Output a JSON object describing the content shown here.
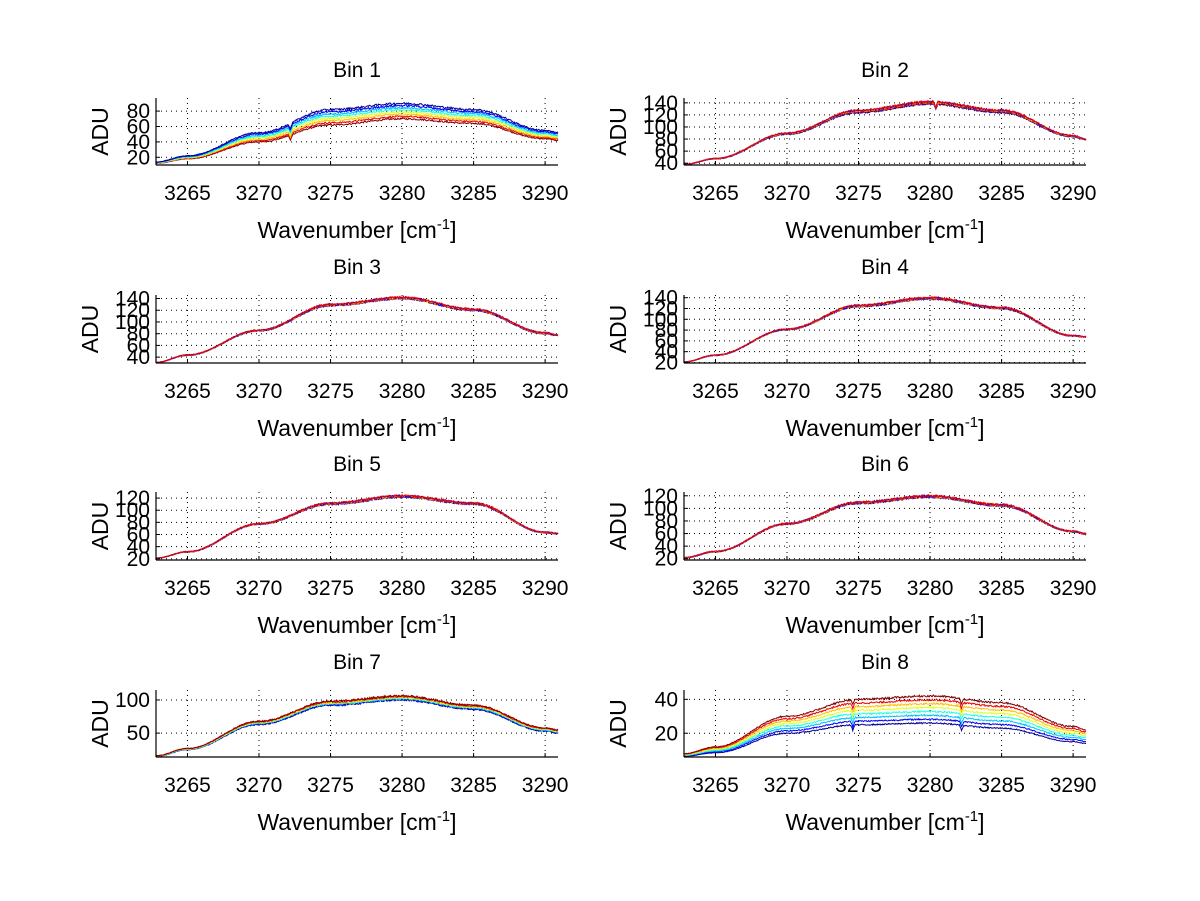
{
  "figure": {
    "layout": "4 rows x 2 columns of subplots"
  },
  "colormap": [
    "#00008f",
    "#0000ff",
    "#0060ff",
    "#00bfff",
    "#20ffdf",
    "#80ff80",
    "#dfff20",
    "#ffbf00",
    "#ff6000",
    "#ef0000",
    "#800000"
  ],
  "chart_data": [
    {
      "type": "line",
      "title": "Bin 1",
      "xlabel": "Wavenumber [cm",
      "xlabel_sup": "-1",
      "xlabel_end": "]",
      "ylabel": "ADU",
      "xlim": [
        3262.8,
        3290.9
      ],
      "ylim": [
        10,
        97
      ],
      "xticks": [
        3265,
        3270,
        3275,
        3280,
        3285,
        3290
      ],
      "yticks": [
        20,
        40,
        60,
        80
      ],
      "grid": true,
      "legend": "none",
      "n_series": 8,
      "series_order": "top curve dark blue, bottom curve red",
      "profile": {
        "x": [
          3262.8,
          3265,
          3270,
          3275,
          3280,
          3285,
          3290,
          3290.9
        ],
        "top": [
          14,
          22,
          52,
          82,
          90,
          82,
          55,
          52
        ],
        "bottom": [
          12,
          18,
          40,
          62,
          70,
          64,
          44,
          42
        ]
      },
      "features": [
        {
          "x": 3272.2,
          "type": "absorption dip"
        }
      ]
    },
    {
      "type": "line",
      "title": "Bin 2",
      "xlabel": "Wavenumber [cm",
      "xlabel_sup": "-1",
      "xlabel_end": "]",
      "ylabel": "ADU",
      "xlim": [
        3262.8,
        3290.9
      ],
      "ylim": [
        37,
        148
      ],
      "xticks": [
        3265,
        3270,
        3275,
        3280,
        3285,
        3290
      ],
      "yticks": [
        40,
        60,
        80,
        100,
        120,
        140
      ],
      "grid": true,
      "legend": "none",
      "n_series": 8,
      "series_order": "curves nearly overlapping",
      "profile": {
        "x": [
          3262.8,
          3265,
          3270,
          3275,
          3280,
          3285,
          3290,
          3290.9
        ],
        "top": [
          38,
          48,
          90,
          128,
          142,
          128,
          86,
          80
        ],
        "bottom": [
          38,
          47,
          88,
          124,
          138,
          124,
          84,
          79
        ]
      },
      "features": [
        {
          "x": 3280.4,
          "type": "absorption dip"
        }
      ]
    },
    {
      "type": "line",
      "title": "Bin 3",
      "xlabel": "Wavenumber [cm",
      "xlabel_sup": "-1",
      "xlabel_end": "]",
      "ylabel": "ADU",
      "xlim": [
        3262.8,
        3290.9
      ],
      "ylim": [
        30,
        146
      ],
      "xticks": [
        3265,
        3270,
        3275,
        3280,
        3285,
        3290
      ],
      "yticks": [
        40,
        60,
        80,
        100,
        120,
        140
      ],
      "grid": true,
      "legend": "none",
      "n_series": 8,
      "series_order": "curves nearly overlapping",
      "profile": {
        "x": [
          3262.8,
          3265,
          3270,
          3275,
          3280,
          3285,
          3290,
          3290.9
        ],
        "top": [
          31,
          44,
          86,
          130,
          142,
          122,
          82,
          78
        ],
        "bottom": [
          31,
          43,
          85,
          128,
          140,
          120,
          80,
          77
        ]
      },
      "features": []
    },
    {
      "type": "line",
      "title": "Bin 4",
      "xlabel": "Wavenumber [cm",
      "xlabel_sup": "-1",
      "xlabel_end": "]",
      "ylabel": "ADU",
      "xlim": [
        3262.8,
        3290.9
      ],
      "ylim": [
        19,
        145
      ],
      "xticks": [
        3265,
        3270,
        3275,
        3280,
        3285,
        3290
      ],
      "yticks": [
        20,
        40,
        60,
        80,
        100,
        120,
        140
      ],
      "grid": true,
      "legend": "none",
      "n_series": 8,
      "series_order": "curves nearly overlapping",
      "profile": {
        "x": [
          3262.8,
          3265,
          3270,
          3275,
          3280,
          3285,
          3290,
          3290.9
        ],
        "top": [
          21,
          34,
          82,
          126,
          140,
          122,
          70,
          68
        ],
        "bottom": [
          21,
          33,
          81,
          124,
          138,
          120,
          69,
          67
        ]
      },
      "features": []
    },
    {
      "type": "line",
      "title": "Bin 5",
      "xlabel": "Wavenumber [cm",
      "xlabel_sup": "-1",
      "xlabel_end": "]",
      "ylabel": "ADU",
      "xlim": [
        3262.8,
        3290.9
      ],
      "ylim": [
        18,
        130
      ],
      "xticks": [
        3265,
        3270,
        3275,
        3280,
        3285,
        3290
      ],
      "yticks": [
        20,
        40,
        60,
        80,
        100,
        120
      ],
      "grid": true,
      "legend": "none",
      "n_series": 8,
      "series_order": "curves nearly overlapping",
      "profile": {
        "x": [
          3262.8,
          3265,
          3270,
          3275,
          3280,
          3285,
          3290,
          3290.9
        ],
        "top": [
          21,
          32,
          78,
          112,
          124,
          112,
          64,
          62
        ],
        "bottom": [
          21,
          31,
          77,
          110,
          122,
          110,
          63,
          61
        ]
      },
      "features": []
    },
    {
      "type": "line",
      "title": "Bin 6",
      "xlabel": "Wavenumber [cm",
      "xlabel_sup": "-1",
      "xlabel_end": "]",
      "ylabel": "ADU",
      "xlim": [
        3262.8,
        3290.9
      ],
      "ylim": [
        18,
        126
      ],
      "xticks": [
        3265,
        3270,
        3275,
        3280,
        3285,
        3290
      ],
      "yticks": [
        20,
        40,
        60,
        80,
        100,
        120
      ],
      "grid": true,
      "legend": "none",
      "n_series": 8,
      "series_order": "curves nearly overlapping",
      "profile": {
        "x": [
          3262.8,
          3265,
          3270,
          3275,
          3280,
          3285,
          3290,
          3290.9
        ],
        "top": [
          22,
          32,
          76,
          110,
          120,
          106,
          64,
          60
        ],
        "bottom": [
          21,
          31,
          75,
          108,
          118,
          104,
          63,
          59
        ]
      },
      "features": []
    },
    {
      "type": "line",
      "title": "Bin 7",
      "xlabel": "Wavenumber [cm",
      "xlabel_sup": "-1",
      "xlabel_end": "]",
      "ylabel": "ADU",
      "xlim": [
        3262.8,
        3290.9
      ],
      "ylim": [
        14,
        115
      ],
      "xticks": [
        3265,
        3270,
        3275,
        3280,
        3285,
        3290
      ],
      "yticks": [
        50,
        100
      ],
      "grid": true,
      "legend": "none",
      "n_series": 8,
      "series_order": "top curve red, bottom curve dark blue",
      "profile": {
        "x": [
          3262.8,
          3265,
          3270,
          3275,
          3280,
          3285,
          3290,
          3290.9
        ],
        "top": [
          16,
          27,
          68,
          98,
          106,
          92,
          58,
          55
        ],
        "bottom": [
          15,
          25,
          63,
          92,
          100,
          86,
          53,
          50
        ]
      },
      "features": []
    },
    {
      "type": "line",
      "title": "Bin 8",
      "xlabel": "Wavenumber [cm",
      "xlabel_sup": "-1",
      "xlabel_end": "]",
      "ylabel": "ADU",
      "xlim": [
        3262.8,
        3290.9
      ],
      "ylim": [
        6,
        45.5
      ],
      "xticks": [
        3265,
        3270,
        3275,
        3280,
        3285,
        3290
      ],
      "yticks": [
        20,
        40
      ],
      "grid": true,
      "legend": "none",
      "n_series": 8,
      "series_order": "top curve red, bottom curve dark blue",
      "profile": {
        "x": [
          3262.8,
          3265,
          3270,
          3275,
          3280,
          3285,
          3290,
          3290.9
        ],
        "top": [
          8,
          12,
          30,
          40,
          42,
          38,
          24,
          22
        ],
        "bottom": [
          6.5,
          8.5,
          20,
          25,
          26,
          23,
          15,
          14
        ]
      },
      "features": [
        {
          "x": 3274.6,
          "type": "dip"
        },
        {
          "x": 3282.2,
          "type": "dip"
        }
      ]
    }
  ]
}
